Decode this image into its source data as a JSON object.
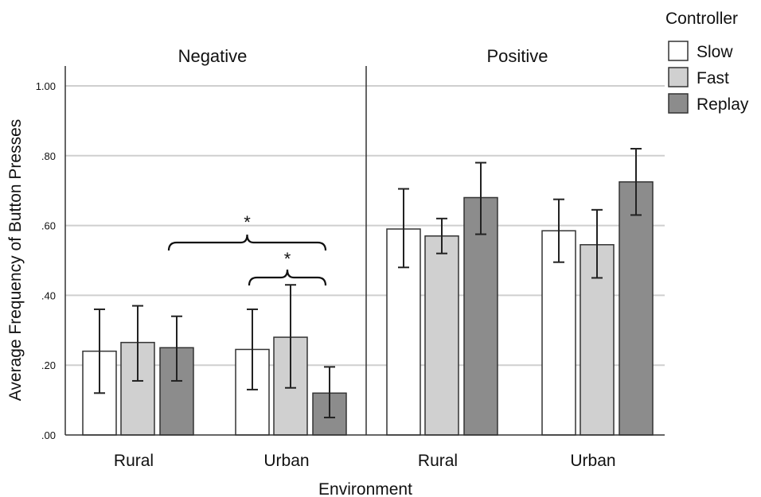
{
  "chart_data": {
    "type": "bar",
    "facets": [
      "Negative",
      "Positive"
    ],
    "categories": [
      "Rural",
      "Urban"
    ],
    "xlabel": "Environment",
    "ylabel": "Average Frequency of Button Presses",
    "ylim": [
      0,
      1.0
    ],
    "yticks": [
      ".00",
      ".20",
      ".40",
      ".60",
      ".80",
      "1.00"
    ],
    "grid": true,
    "legend": {
      "title": "Controller",
      "placement": "top-right"
    },
    "series": [
      {
        "name": "Slow",
        "color": "#ffffff",
        "panels": [
          {
            "values": [
              0.24,
              0.245
            ],
            "ci_low": [
              0.12,
              0.13
            ],
            "ci_high": [
              0.36,
              0.36
            ]
          },
          {
            "values": [
              0.59,
              0.585
            ],
            "ci_low": [
              0.48,
              0.495
            ],
            "ci_high": [
              0.705,
              0.675
            ]
          }
        ]
      },
      {
        "name": "Fast",
        "color": "#d0d0d0",
        "panels": [
          {
            "values": [
              0.265,
              0.28
            ],
            "ci_low": [
              0.155,
              0.135
            ],
            "ci_high": [
              0.37,
              0.43
            ]
          },
          {
            "values": [
              0.57,
              0.545
            ],
            "ci_low": [
              0.52,
              0.45
            ],
            "ci_high": [
              0.62,
              0.645
            ]
          }
        ]
      },
      {
        "name": "Replay",
        "color": "#8c8c8c",
        "panels": [
          {
            "values": [
              0.25,
              0.12
            ],
            "ci_low": [
              0.155,
              0.05
            ],
            "ci_high": [
              0.34,
              0.195
            ]
          },
          {
            "values": [
              0.68,
              0.725
            ],
            "ci_low": [
              0.575,
              0.63
            ],
            "ci_high": [
              0.78,
              0.82
            ]
          }
        ]
      }
    ],
    "annotations": [
      {
        "text": "*",
        "panel": "Negative",
        "from": "Rural-Fast",
        "to": "Urban-Replay"
      },
      {
        "text": "*",
        "panel": "Negative",
        "from": "Urban-Fast",
        "to": "Urban-Replay"
      }
    ]
  }
}
